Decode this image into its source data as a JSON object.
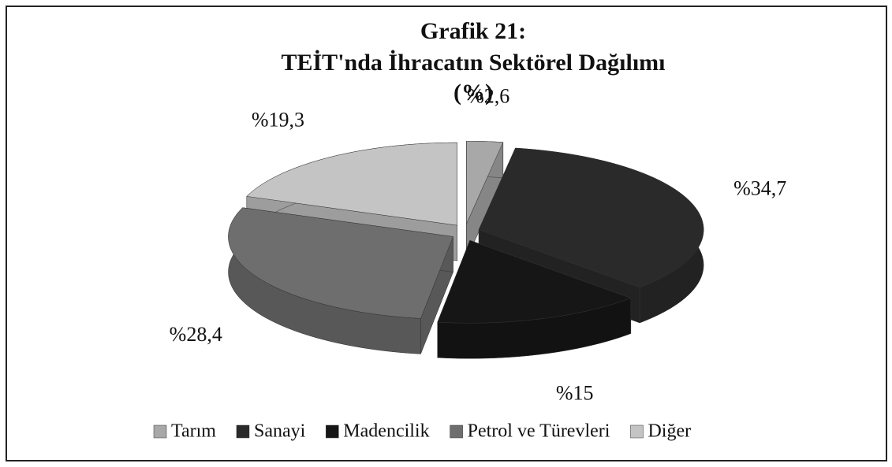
{
  "chart_data": {
    "type": "pie",
    "title": "Grafik 21:",
    "subtitle": "TEİT'nda İhracatın Sektörel Dağılımı",
    "unit_label": "(%)",
    "categories": [
      "Tarım",
      "Sanayi",
      "Madencilik",
      "Petrol ve Türevleri",
      "Diğer"
    ],
    "values": [
      2.6,
      34.7,
      15,
      28.4,
      19.3
    ],
    "value_labels": [
      "%2,6",
      "%34,7",
      "%15",
      "%28,4",
      "%19,3"
    ],
    "colors": [
      "#a8a8a8",
      "#2a2a2a",
      "#161616",
      "#6e6e6e",
      "#c4c4c4"
    ],
    "legend": "bottom"
  }
}
